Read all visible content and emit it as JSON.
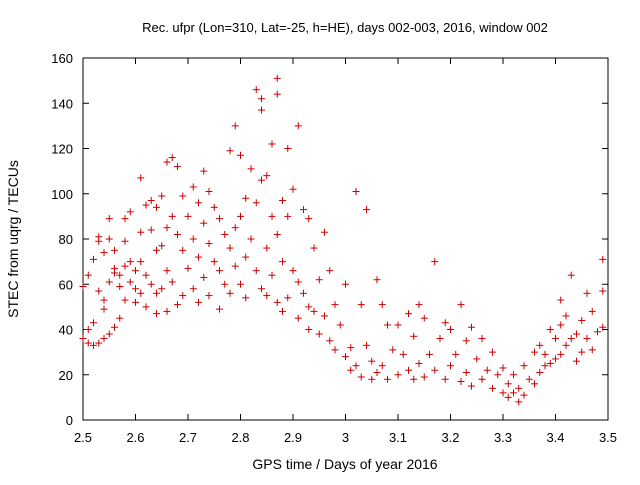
{
  "chart_data": {
    "type": "scatter",
    "title": "Rec. ufpr (Lon=310, Lat=-25, h=HE), days 002-003, 2016, window 002",
    "xlabel": "GPS time / Days of year 2016",
    "ylabel": "STEC from uqrg / TECUs",
    "xlim": [
      2.5,
      3.5
    ],
    "ylim": [
      0,
      160
    ],
    "xticks": [
      2.5,
      2.6,
      2.7,
      2.8,
      2.9,
      3.0,
      3.1,
      3.2,
      3.3,
      3.4,
      3.5
    ],
    "xtick_labels": [
      "2.5",
      "2.6",
      "2.7",
      "2.8",
      "2.9",
      "3",
      "3.1",
      "3.2",
      "3.3",
      "3.4",
      "3.5"
    ],
    "yticks": [
      0,
      20,
      40,
      60,
      80,
      100,
      120,
      140,
      160
    ],
    "ytick_labels": [
      "0",
      "20",
      "40",
      "60",
      "80",
      "100",
      "120",
      "140",
      "160"
    ],
    "grid": false,
    "marker": "+",
    "series": [
      {
        "name": "STEC",
        "color": "#cc0000",
        "points": [
          [
            2.5,
            36
          ],
          [
            2.5,
            59
          ],
          [
            2.51,
            34
          ],
          [
            2.51,
            40
          ],
          [
            2.51,
            64
          ],
          [
            2.52,
            71
          ],
          [
            2.52,
            33
          ],
          [
            2.52,
            43
          ],
          [
            2.53,
            79
          ],
          [
            2.53,
            81
          ],
          [
            2.53,
            57
          ],
          [
            2.53,
            34
          ],
          [
            2.54,
            49
          ],
          [
            2.54,
            53
          ],
          [
            2.54,
            74
          ],
          [
            2.54,
            36
          ],
          [
            2.55,
            61
          ],
          [
            2.55,
            80
          ],
          [
            2.55,
            89
          ],
          [
            2.55,
            38
          ],
          [
            2.56,
            67
          ],
          [
            2.56,
            65
          ],
          [
            2.56,
            41
          ],
          [
            2.56,
            75
          ],
          [
            2.57,
            59
          ],
          [
            2.57,
            64
          ],
          [
            2.57,
            45
          ],
          [
            2.58,
            68
          ],
          [
            2.58,
            79
          ],
          [
            2.58,
            89
          ],
          [
            2.58,
            53
          ],
          [
            2.59,
            92
          ],
          [
            2.59,
            70
          ],
          [
            2.59,
            61
          ],
          [
            2.6,
            66
          ],
          [
            2.6,
            58
          ],
          [
            2.6,
            52
          ],
          [
            2.61,
            107
          ],
          [
            2.61,
            83
          ],
          [
            2.61,
            70
          ],
          [
            2.61,
            56
          ],
          [
            2.62,
            95
          ],
          [
            2.62,
            64
          ],
          [
            2.62,
            50
          ],
          [
            2.63,
            97
          ],
          [
            2.63,
            84
          ],
          [
            2.63,
            60
          ],
          [
            2.64,
            94
          ],
          [
            2.64,
            75
          ],
          [
            2.64,
            56
          ],
          [
            2.64,
            47
          ],
          [
            2.65,
            99
          ],
          [
            2.65,
            77
          ],
          [
            2.65,
            58
          ],
          [
            2.66,
            114
          ],
          [
            2.66,
            85
          ],
          [
            2.66,
            66
          ],
          [
            2.66,
            48
          ],
          [
            2.67,
            116
          ],
          [
            2.67,
            90
          ],
          [
            2.67,
            61
          ],
          [
            2.68,
            112
          ],
          [
            2.68,
            82
          ],
          [
            2.68,
            51
          ],
          [
            2.69,
            99
          ],
          [
            2.69,
            75
          ],
          [
            2.69,
            55
          ],
          [
            2.7,
            90
          ],
          [
            2.7,
            67
          ],
          [
            2.71,
            103
          ],
          [
            2.71,
            80
          ],
          [
            2.71,
            58
          ],
          [
            2.72,
            96
          ],
          [
            2.72,
            72
          ],
          [
            2.72,
            52
          ],
          [
            2.73,
            110
          ],
          [
            2.73,
            87
          ],
          [
            2.73,
            63
          ],
          [
            2.74,
            101
          ],
          [
            2.74,
            78
          ],
          [
            2.74,
            55
          ],
          [
            2.75,
            94
          ],
          [
            2.75,
            70
          ],
          [
            2.76,
            89
          ],
          [
            2.76,
            66
          ],
          [
            2.76,
            49
          ],
          [
            2.77,
            82
          ],
          [
            2.77,
            60
          ],
          [
            2.78,
            119
          ],
          [
            2.78,
            76
          ],
          [
            2.78,
            56
          ],
          [
            2.79,
            130
          ],
          [
            2.79,
            85
          ],
          [
            2.79,
            68
          ],
          [
            2.8,
            117
          ],
          [
            2.8,
            90
          ],
          [
            2.8,
            60
          ],
          [
            2.81,
            98
          ],
          [
            2.81,
            72
          ],
          [
            2.81,
            54
          ],
          [
            2.82,
            111
          ],
          [
            2.82,
            80
          ],
          [
            2.83,
            146
          ],
          [
            2.83,
            96
          ],
          [
            2.83,
            66
          ],
          [
            2.84,
            142
          ],
          [
            2.84,
            137
          ],
          [
            2.84,
            106
          ],
          [
            2.84,
            58
          ],
          [
            2.85,
            108
          ],
          [
            2.85,
            76
          ],
          [
            2.85,
            55
          ],
          [
            2.86,
            122
          ],
          [
            2.86,
            90
          ],
          [
            2.86,
            64
          ],
          [
            2.87,
            151
          ],
          [
            2.87,
            144
          ],
          [
            2.87,
            82
          ],
          [
            2.87,
            52
          ],
          [
            2.88,
            97
          ],
          [
            2.88,
            70
          ],
          [
            2.88,
            48
          ],
          [
            2.89,
            120
          ],
          [
            2.89,
            90
          ],
          [
            2.89,
            54
          ],
          [
            2.9,
            102
          ],
          [
            2.9,
            66
          ],
          [
            2.91,
            130
          ],
          [
            2.91,
            61
          ],
          [
            2.91,
            45
          ],
          [
            2.92,
            93
          ],
          [
            2.92,
            56
          ],
          [
            2.93,
            89
          ],
          [
            2.93,
            50
          ],
          [
            2.93,
            40
          ],
          [
            2.94,
            76
          ],
          [
            2.94,
            48
          ],
          [
            2.95,
            62
          ],
          [
            2.95,
            38
          ],
          [
            2.96,
            83
          ],
          [
            2.96,
            46
          ],
          [
            2.97,
            66
          ],
          [
            2.97,
            35
          ],
          [
            2.98,
            51
          ],
          [
            2.98,
            31
          ],
          [
            2.99,
            42
          ],
          [
            3.0,
            60
          ],
          [
            3.0,
            28
          ],
          [
            3.01,
            32
          ],
          [
            3.01,
            22
          ],
          [
            3.02,
            101
          ],
          [
            3.02,
            24
          ],
          [
            3.03,
            51
          ],
          [
            3.03,
            19
          ],
          [
            3.04,
            93
          ],
          [
            3.04,
            33
          ],
          [
            3.05,
            26
          ],
          [
            3.05,
            18
          ],
          [
            3.06,
            62
          ],
          [
            3.06,
            21
          ],
          [
            3.07,
            51
          ],
          [
            3.07,
            24
          ],
          [
            3.08,
            42
          ],
          [
            3.08,
            18
          ],
          [
            3.09,
            31
          ],
          [
            3.1,
            42
          ],
          [
            3.1,
            20
          ],
          [
            3.11,
            29
          ],
          [
            3.12,
            47
          ],
          [
            3.12,
            22
          ],
          [
            3.13,
            37
          ],
          [
            3.13,
            18
          ],
          [
            3.14,
            51
          ],
          [
            3.14,
            25
          ],
          [
            3.15,
            45
          ],
          [
            3.15,
            19
          ],
          [
            3.16,
            29
          ],
          [
            3.17,
            70
          ],
          [
            3.17,
            22
          ],
          [
            3.18,
            36
          ],
          [
            3.19,
            43
          ],
          [
            3.19,
            18
          ],
          [
            3.2,
            40
          ],
          [
            3.2,
            24
          ],
          [
            3.21,
            29
          ],
          [
            3.22,
            51
          ],
          [
            3.22,
            17
          ],
          [
            3.23,
            35
          ],
          [
            3.23,
            21
          ],
          [
            3.24,
            41
          ],
          [
            3.24,
            15
          ],
          [
            3.25,
            27
          ],
          [
            3.26,
            36
          ],
          [
            3.26,
            18
          ],
          [
            3.27,
            22
          ],
          [
            3.28,
            30
          ],
          [
            3.28,
            14
          ],
          [
            3.29,
            20
          ],
          [
            3.3,
            23
          ],
          [
            3.3,
            12
          ],
          [
            3.31,
            16
          ],
          [
            3.31,
            10
          ],
          [
            3.32,
            20
          ],
          [
            3.32,
            12
          ],
          [
            3.33,
            14
          ],
          [
            3.33,
            8
          ],
          [
            3.34,
            24
          ],
          [
            3.34,
            11
          ],
          [
            3.35,
            18
          ],
          [
            3.36,
            30
          ],
          [
            3.36,
            16
          ],
          [
            3.37,
            33
          ],
          [
            3.37,
            21
          ],
          [
            3.38,
            24
          ],
          [
            3.38,
            29
          ],
          [
            3.39,
            40
          ],
          [
            3.39,
            25
          ],
          [
            3.4,
            36
          ],
          [
            3.4,
            27
          ],
          [
            3.41,
            53
          ],
          [
            3.41,
            42
          ],
          [
            3.41,
            29
          ],
          [
            3.42,
            46
          ],
          [
            3.42,
            33
          ],
          [
            3.43,
            64
          ],
          [
            3.43,
            36
          ],
          [
            3.44,
            38
          ],
          [
            3.44,
            26
          ],
          [
            3.45,
            44
          ],
          [
            3.45,
            30
          ],
          [
            3.46,
            56
          ],
          [
            3.46,
            36
          ],
          [
            3.47,
            48
          ],
          [
            3.47,
            31
          ],
          [
            3.48,
            39
          ],
          [
            3.49,
            71
          ],
          [
            3.49,
            57
          ],
          [
            3.49,
            41
          ]
        ]
      }
    ]
  }
}
